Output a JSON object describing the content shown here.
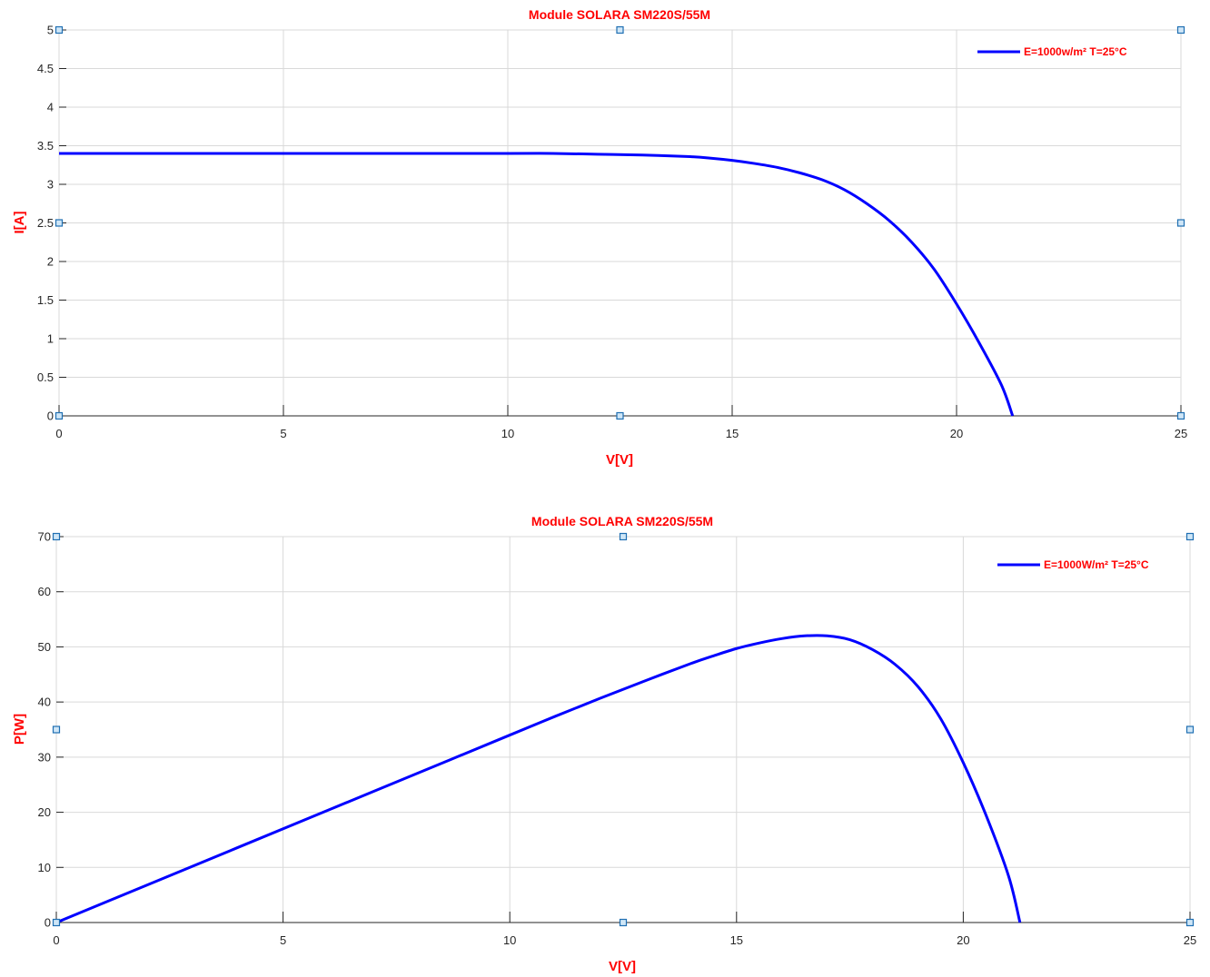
{
  "colors": {
    "title": "#ff0000",
    "axis_label": "#ff0000",
    "curve": "#0000ff",
    "legend_text": "#ff0000",
    "grid": "#d9d9d9"
  },
  "chart_data": [
    {
      "type": "line",
      "title": "Module SOLARA SM220S/55M",
      "xlabel": "V[V]",
      "ylabel": "I[A]",
      "xlim": [
        0,
        25
      ],
      "ylim": [
        0,
        5
      ],
      "xticks": [
        "0",
        "5",
        "10",
        "15",
        "20",
        "25"
      ],
      "yticks": [
        "0",
        "0.5",
        "1",
        "1.5",
        "2",
        "2.5",
        "3",
        "3.5",
        "4",
        "4.5",
        "5"
      ],
      "grid": true,
      "legend_position": "top-right",
      "series": [
        {
          "name": "E=1000w/m² T=25°C",
          "x": [
            0,
            2,
            4,
            6,
            8,
            10,
            11,
            12,
            13,
            14,
            14.5,
            15,
            15.5,
            16,
            16.5,
            17,
            17.5,
            18,
            18.5,
            19,
            19.5,
            20,
            20.5,
            21,
            21.25
          ],
          "y": [
            3.4,
            3.4,
            3.4,
            3.4,
            3.4,
            3.4,
            3.4,
            3.39,
            3.38,
            3.36,
            3.34,
            3.31,
            3.27,
            3.22,
            3.15,
            3.06,
            2.93,
            2.75,
            2.53,
            2.25,
            1.9,
            1.45,
            0.95,
            0.4,
            0
          ]
        }
      ]
    },
    {
      "type": "line",
      "title": "Module SOLARA SM220S/55M",
      "xlabel": "V[V]",
      "ylabel": "P[W]",
      "xlim": [
        0,
        25
      ],
      "ylim": [
        0,
        70
      ],
      "xticks": [
        "0",
        "5",
        "10",
        "15",
        "20",
        "25"
      ],
      "yticks": [
        "0",
        "10",
        "20",
        "30",
        "40",
        "50",
        "60",
        "70"
      ],
      "grid": true,
      "legend_position": "top-right",
      "series": [
        {
          "name": "E=1000W/m² T=25°C",
          "x": [
            0,
            2,
            4,
            6,
            8,
            10,
            11,
            12,
            13,
            14,
            14.5,
            15,
            15.5,
            16,
            16.5,
            17,
            17.5,
            18,
            18.5,
            19,
            19.5,
            20,
            20.5,
            21,
            21.25
          ],
          "y": [
            0,
            6.8,
            13.6,
            20.4,
            27.2,
            34,
            37.4,
            40.7,
            43.9,
            47,
            48.4,
            49.7,
            50.7,
            51.5,
            52,
            52,
            51.3,
            49.5,
            46.8,
            42.8,
            37,
            29,
            19.5,
            8.4,
            0
          ]
        }
      ]
    }
  ]
}
